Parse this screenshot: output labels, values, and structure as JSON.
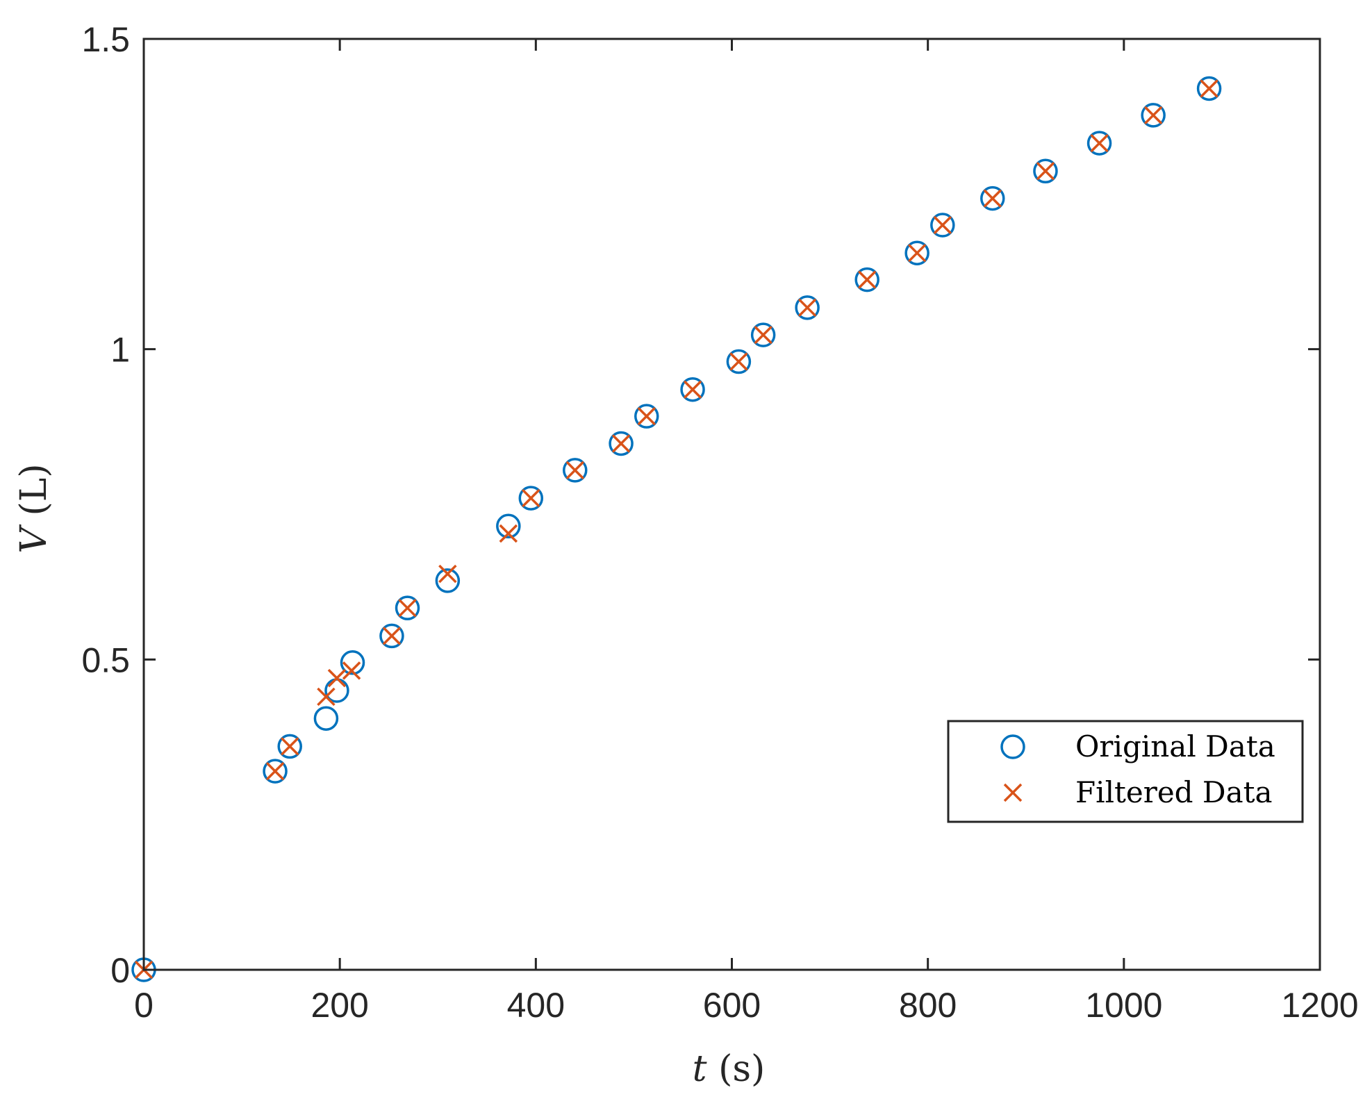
{
  "chart_data": {
    "type": "scatter",
    "xlabel": {
      "var": "t",
      "unit": " (s)"
    },
    "ylabel": {
      "var": "V",
      "unit": " (L)"
    },
    "xlim": [
      0,
      1200
    ],
    "ylim": [
      0,
      1.5
    ],
    "xticks": [
      0,
      200,
      400,
      600,
      800,
      1000,
      1200
    ],
    "xtick_labels": [
      "0",
      "200",
      "400",
      "600",
      "800",
      "1000",
      "1200"
    ],
    "yticks": [
      0,
      0.5,
      1,
      1.5
    ],
    "ytick_labels": [
      "0",
      "0.5",
      "1",
      "1.5"
    ],
    "grid": false,
    "legend_position": "lower-right",
    "series": [
      {
        "name": "Original Data",
        "marker": "circle",
        "color": "#0072BD",
        "x": [
          0,
          134,
          149,
          186,
          197,
          213,
          253,
          269,
          310,
          372,
          395,
          440,
          487,
          513,
          560,
          607,
          632,
          677,
          738,
          789,
          815,
          866,
          920,
          975,
          1030,
          1087
        ],
        "y": [
          0.0,
          0.32,
          0.36,
          0.405,
          0.45,
          0.495,
          0.538,
          0.583,
          0.627,
          0.715,
          0.76,
          0.805,
          0.848,
          0.892,
          0.935,
          0.98,
          1.023,
          1.067,
          1.112,
          1.155,
          1.2,
          1.243,
          1.287,
          1.332,
          1.377,
          1.42
        ]
      },
      {
        "name": "Filtered Data",
        "marker": "x",
        "color": "#D95319",
        "x": [
          0,
          134,
          149,
          186,
          197,
          212,
          253,
          269,
          310,
          372,
          395,
          440,
          487,
          513,
          560,
          607,
          632,
          677,
          738,
          789,
          815,
          866,
          920,
          975,
          1030,
          1087
        ],
        "y": [
          0.0,
          0.32,
          0.36,
          0.44,
          0.47,
          0.482,
          0.538,
          0.583,
          0.638,
          0.703,
          0.76,
          0.805,
          0.848,
          0.892,
          0.935,
          0.98,
          1.023,
          1.067,
          1.112,
          1.155,
          1.2,
          1.243,
          1.287,
          1.332,
          1.377,
          1.42
        ]
      }
    ]
  }
}
